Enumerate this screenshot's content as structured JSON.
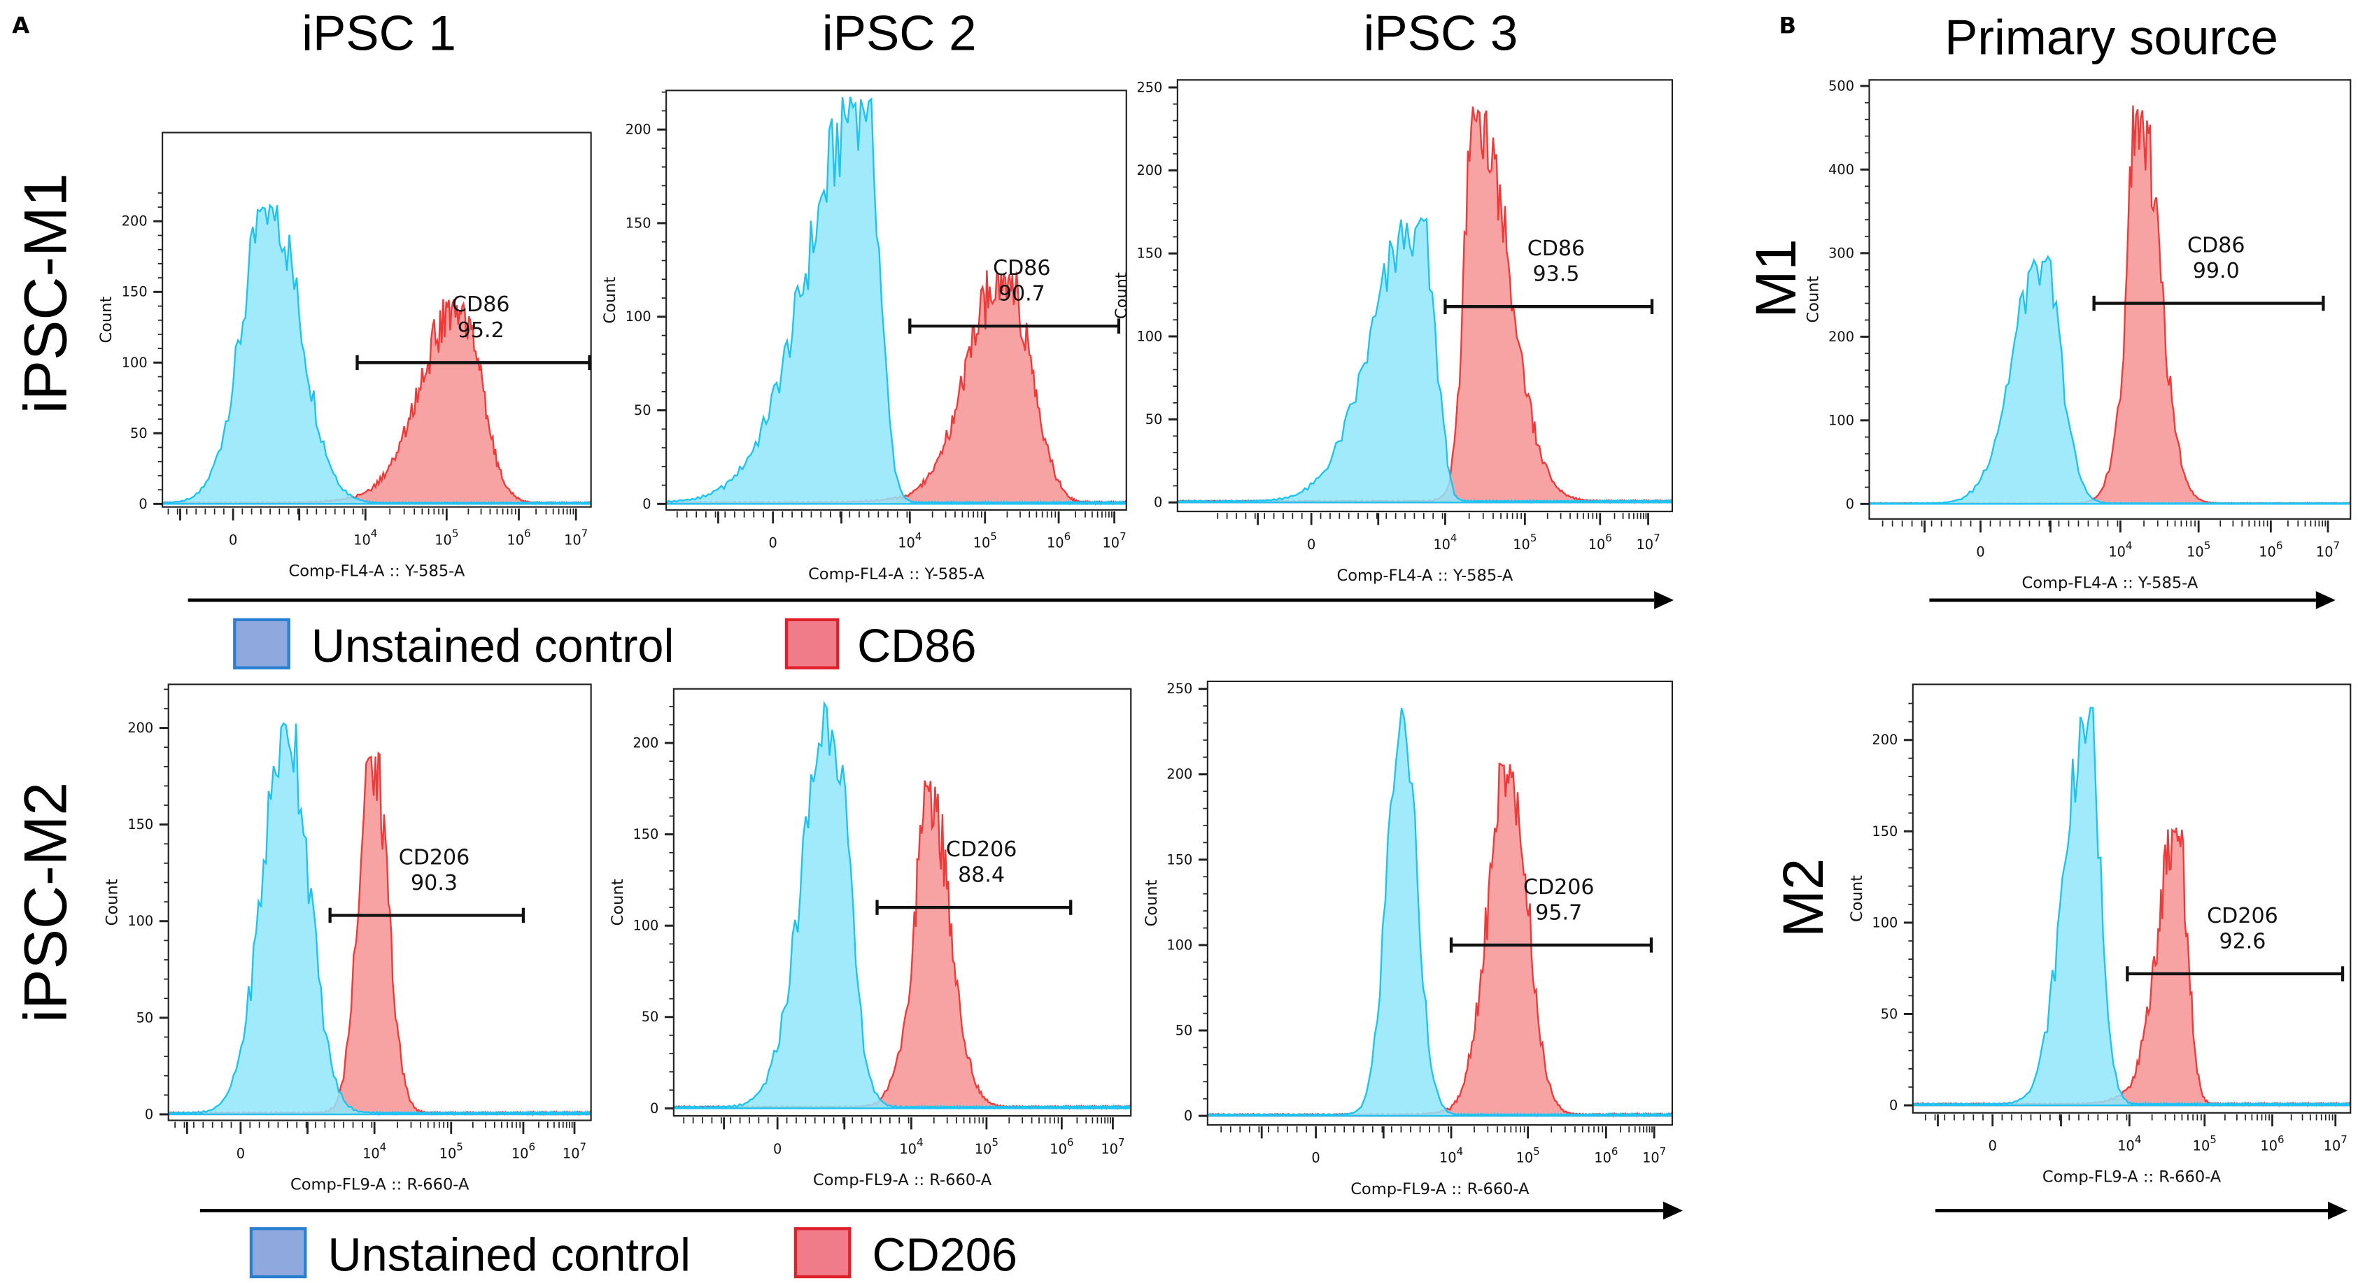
{
  "figure": {
    "panel_a_letter": "A",
    "panel_b_letter": "B",
    "columns": [
      "iPSC 1",
      "iPSC 2",
      "iPSC 3",
      "Primary source"
    ],
    "rows": {
      "a_top": "iPSC-M1",
      "a_bottom": "iPSC-M2",
      "b_top": "M1",
      "b_bottom": "M2"
    },
    "legend_top": {
      "control": "Unstained control",
      "stain": "CD86"
    },
    "legend_bottom": {
      "control": "Unstained control",
      "stain": "CD206"
    }
  },
  "colors": {
    "control_line": "#1ec3f2",
    "control_fill": "#8fe6fc",
    "stain_line": "#f03a3a",
    "stain_fill": "#f7a3a3",
    "legend_control": "#8fa9de",
    "legend_control_border": "#2a7fd0",
    "legend_stain": "#f07c8a",
    "legend_stain_border": "#e0202a"
  },
  "chart_data": [
    {
      "type": "area",
      "panel": "iPSC 1 / iPSC-M1",
      "xlabel": "Comp-FL4-A :: Y-585-A",
      "ylabel": "Count",
      "ylim": [
        0,
        220
      ],
      "yticks": [
        0,
        50,
        100,
        150,
        200
      ],
      "xtick_labels": [
        "0",
        "10^4",
        "10^5",
        "10^6",
        "10^7"
      ],
      "x_scale": "biexponential",
      "series": [
        {
          "name": "Unstained control",
          "peak_intensity": 60,
          "peak_count": 215,
          "range": [
            -70,
            5200
          ]
        },
        {
          "name": "CD86",
          "peak_intensity": 148000,
          "peak_count": 145,
          "range": [
            3500,
            1000000
          ]
        }
      ],
      "gate": {
        "marker": "CD86",
        "percent": "95.2",
        "from": 6500,
        "to": 18000000,
        "count_level": 100
      }
    },
    {
      "type": "area",
      "panel": "iPSC 2 / iPSC-M1",
      "xlabel": "Comp-FL4-A :: Y-585-A",
      "ylabel": "Count",
      "ylim": [
        0,
        225
      ],
      "yticks": [
        0,
        50,
        100,
        150,
        200
      ],
      "xtick_labels": [
        "0",
        "10^4",
        "10^5",
        "10^6",
        "10^7"
      ],
      "x_scale": "biexponential",
      "series": [
        {
          "name": "Unstained control",
          "peak_intensity": 1100,
          "peak_count": 220,
          "range": [
            -240,
            7000
          ]
        },
        {
          "name": "CD86",
          "peak_intensity": 190000,
          "peak_count": 125,
          "range": [
            5000,
            1600000
          ]
        }
      ],
      "gate": {
        "marker": "CD86",
        "percent": "90.7",
        "from": 10000,
        "to": 12000000,
        "count_level": 95
      }
    },
    {
      "type": "area",
      "panel": "iPSC 3 / iPSC-M1",
      "xlabel": "Comp-FL4-A :: Y-585-A",
      "ylabel": "Count",
      "ylim": [
        0,
        255
      ],
      "yticks": [
        0,
        50,
        100,
        150,
        200,
        250
      ],
      "xtick_labels": [
        "0",
        "10^4",
        "10^5",
        "10^6",
        "10^7"
      ],
      "x_scale": "biexponential",
      "series": [
        {
          "name": "Unstained control",
          "peak_intensity": 2500,
          "peak_count": 172,
          "range": [
            -15,
            13500
          ]
        },
        {
          "name": "CD86",
          "peak_intensity": 24000,
          "peak_count": 240,
          "range": [
            10000,
            330000
          ]
        }
      ],
      "gate": {
        "marker": "CD86",
        "percent": "93.5",
        "from": 10000,
        "to": 12000000,
        "count_level": 118
      }
    },
    {
      "type": "area",
      "panel": "Primary source / M1",
      "xlabel": "Comp-FL4-A :: Y-585-A",
      "ylabel": "Count",
      "ylim": [
        0,
        505
      ],
      "yticks": [
        0,
        100,
        200,
        300,
        400,
        500
      ],
      "xtick_labels": [
        "0",
        "10^4",
        "10^5",
        "10^6",
        "10^7"
      ],
      "x_scale": "biexponential",
      "series": [
        {
          "name": "Unstained control",
          "peak_intensity": 200,
          "peak_count": 300,
          "range": [
            -15,
            2500
          ]
        },
        {
          "name": "CD86",
          "peak_intensity": 17000,
          "peak_count": 480,
          "range": [
            3200,
            90000
          ]
        }
      ],
      "gate": {
        "marker": "CD86",
        "percent": "99.0",
        "from": 2700,
        "to": 8300000,
        "count_level": 240
      }
    },
    {
      "type": "area",
      "panel": "iPSC 1 / iPSC-M2",
      "xlabel": "Comp-FL9-A :: R-660-A",
      "ylabel": "Count",
      "ylim": [
        0,
        220
      ],
      "yticks": [
        0,
        50,
        100,
        150,
        200
      ],
      "xtick_labels": [
        "0",
        "10^4",
        "10^5",
        "10^6",
        "10^7"
      ],
      "x_scale": "biexponential",
      "series": [
        {
          "name": "Unstained control",
          "peak_intensity": 100,
          "peak_count": 205,
          "range": [
            -20,
            2500
          ]
        },
        {
          "name": "CD206",
          "peak_intensity": 9000,
          "peak_count": 190,
          "range": [
            1250,
            32000
          ]
        }
      ],
      "gate": {
        "marker": "CD206",
        "percent": "90.3",
        "from": 1000,
        "to": 1000000,
        "count_level": 103
      }
    },
    {
      "type": "area",
      "panel": "iPSC 2 / iPSC-M2",
      "xlabel": "Comp-FL9-A :: R-660-A",
      "ylabel": "Count",
      "ylim": [
        0,
        225
      ],
      "yticks": [
        0,
        50,
        100,
        150,
        200
      ],
      "xtick_labels": [
        "0",
        "10^4",
        "10^5",
        "10^6",
        "10^7"
      ],
      "x_scale": "biexponential",
      "series": [
        {
          "name": "Unstained control",
          "peak_intensity": 150,
          "peak_count": 222,
          "range": [
            -25,
            1880
          ]
        },
        {
          "name": "CD206",
          "peak_intensity": 16600,
          "peak_count": 180,
          "range": [
            1880,
            100000
          ]
        }
      ],
      "gate": {
        "marker": "CD206",
        "percent": "88.4",
        "from": 1700,
        "to": 1500000,
        "count_level": 110
      }
    },
    {
      "type": "area",
      "panel": "iPSC 3 / iPSC-M2",
      "xlabel": "Comp-FL9-A :: R-660-A",
      "ylabel": "Count",
      "ylim": [
        0,
        255
      ],
      "yticks": [
        0,
        50,
        100,
        150,
        200,
        250
      ],
      "xtick_labels": [
        "0",
        "10^4",
        "10^5",
        "10^6",
        "10^7"
      ],
      "x_scale": "biexponential",
      "series": [
        {
          "name": "Unstained control",
          "peak_intensity": 800,
          "peak_count": 240,
          "range": [
            90,
            6500
          ]
        },
        {
          "name": "CD206",
          "peak_intensity": 58000,
          "peak_count": 207,
          "range": [
            10000,
            260000
          ]
        }
      ],
      "gate": {
        "marker": "CD206",
        "percent": "95.7",
        "from": 10000,
        "to": 8700000,
        "count_level": 100
      }
    },
    {
      "type": "area",
      "panel": "Primary source / M2",
      "xlabel": "Comp-FL9-A :: R-660-A",
      "ylabel": "Count",
      "ylim": [
        0,
        225
      ],
      "yticks": [
        0,
        50,
        100,
        150,
        200
      ],
      "xtick_labels": [
        "0",
        "10^4",
        "10^5",
        "10^6",
        "10^7"
      ],
      "x_scale": "biexponential",
      "series": [
        {
          "name": "Unstained control",
          "peak_intensity": 1180,
          "peak_count": 218,
          "range": [
            40,
            7000
          ]
        },
        {
          "name": "CD206",
          "peak_intensity": 44000,
          "peak_count": 152,
          "range": [
            4500,
            100000
          ]
        }
      ],
      "gate": {
        "marker": "CD206",
        "percent": "92.6",
        "from": 9000,
        "to": 13000000,
        "count_level": 72
      }
    }
  ]
}
